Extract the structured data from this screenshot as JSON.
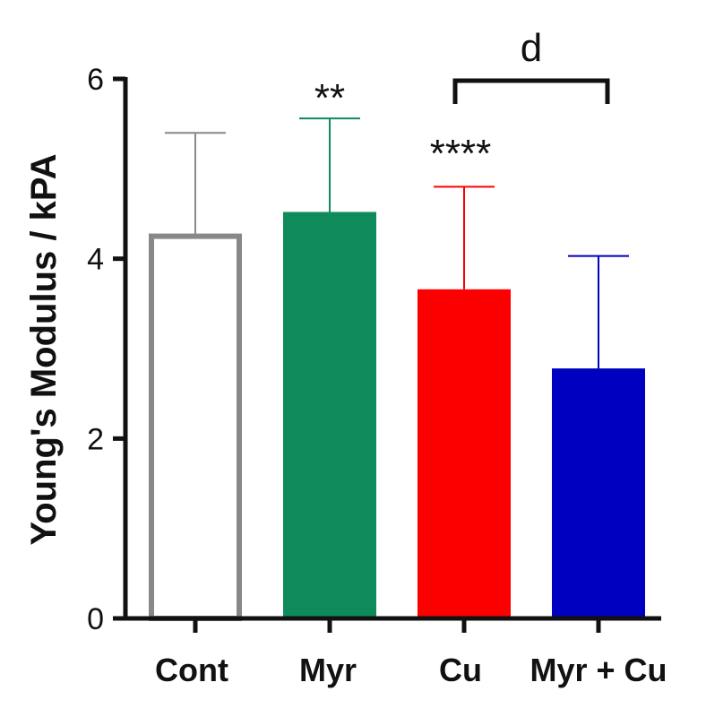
{
  "chart_data": {
    "type": "bar",
    "ylabel": "Young's Modulus / kPA",
    "xlabel": "",
    "ylim": [
      0,
      6
    ],
    "yticks": [
      0,
      2,
      4,
      6
    ],
    "yticks_labels": [
      "0",
      "2",
      "4",
      "6"
    ],
    "grid": false,
    "categories": [
      "Cont",
      "Myr",
      "Cu",
      "Myr + Cu"
    ],
    "values": [
      4.25,
      4.52,
      3.66,
      2.78
    ],
    "error_upper": [
      5.4,
      5.56,
      4.8,
      4.03
    ],
    "bar_fill": [
      "#ffffff",
      "#0e8a5b",
      "#fc0000",
      "#0000c0"
    ],
    "bar_stroke": [
      "#888888",
      "#0e8a5b",
      "#fc0000",
      "#0000c0"
    ],
    "errorbar_colors": [
      "#888888",
      "#0e8a5b",
      "#fc0000",
      "#0000c0"
    ],
    "significance": [
      "",
      "**",
      "****",
      ""
    ],
    "bracket": {
      "from": 2,
      "to": 3,
      "label": "d"
    }
  }
}
